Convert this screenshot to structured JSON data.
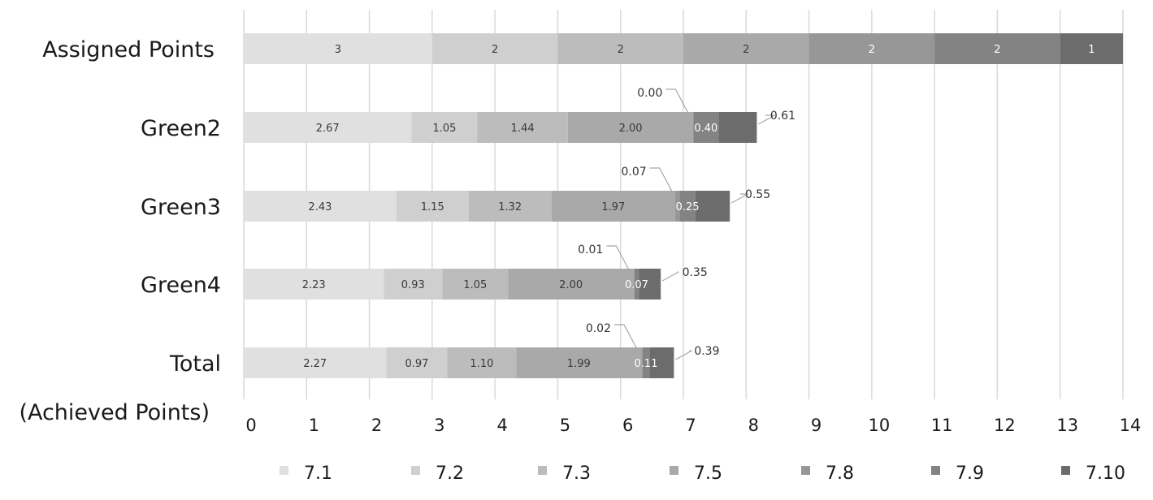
{
  "chart_data": {
    "type": "bar",
    "orientation": "horizontal",
    "stacked": true,
    "categories": [
      "Assigned Points",
      "Green2",
      "Green3",
      "Green4",
      "Total"
    ],
    "category_extra_label": "(Achieved Points)",
    "series": [
      {
        "name": "7.1",
        "values": [
          3,
          2.67,
          2.43,
          2.23,
          2.27
        ],
        "labels": [
          "3",
          "2.67",
          "2.43",
          "2.23",
          "2.27"
        ],
        "color": "#e0e0e0",
        "text_color": "#3a3a3a"
      },
      {
        "name": "7.2",
        "values": [
          2,
          1.05,
          1.15,
          0.93,
          0.97
        ],
        "labels": [
          "2",
          "1.05",
          "1.15",
          "0.93",
          "0.97"
        ],
        "color": "#cfcfcf",
        "text_color": "#3a3a3a"
      },
      {
        "name": "7.3",
        "values": [
          2,
          1.44,
          1.32,
          1.05,
          1.1
        ],
        "labels": [
          "2",
          "1.44",
          "1.32",
          "1.05",
          "1.10"
        ],
        "color": "#bcbcbc",
        "text_color": "#3a3a3a"
      },
      {
        "name": "7.5",
        "values": [
          2,
          2.0,
          1.97,
          2.0,
          1.99
        ],
        "labels": [
          "2",
          "2.00",
          "1.97",
          "2.00",
          "1.99"
        ],
        "color": "#a9a9a9",
        "text_color": "#3a3a3a"
      },
      {
        "name": "7.8",
        "values": [
          2,
          0.0,
          0.07,
          0.01,
          0.02
        ],
        "labels": [
          "2",
          "0.00",
          "0.07",
          "0.01",
          "0.02"
        ],
        "color": "#979797",
        "text_color": "#ffffff",
        "callout_rows": [
          1,
          2,
          3,
          4
        ]
      },
      {
        "name": "7.9",
        "values": [
          2,
          0.4,
          0.25,
          0.07,
          0.11
        ],
        "labels": [
          "2",
          "0.40",
          "0.25",
          "0.07",
          "0.11"
        ],
        "color": "#838383",
        "text_color": "#ffffff"
      },
      {
        "name": "7.10",
        "values": [
          1,
          0.61,
          0.55,
          0.35,
          0.39
        ],
        "labels": [
          "1",
          "0.61",
          "0.55",
          "0.35",
          "0.39"
        ],
        "color": "#6c6c6c",
        "text_color": "#ffffff",
        "callout_rows": [
          1,
          2,
          3,
          4
        ]
      }
    ],
    "xlim": [
      0,
      14
    ],
    "x_ticks": [
      "0",
      "1",
      "2",
      "3",
      "4",
      "5",
      "6",
      "7",
      "8",
      "9",
      "10",
      "11",
      "12",
      "13",
      "14"
    ],
    "grid": true,
    "legend_position": "bottom",
    "title": "",
    "xlabel": "",
    "ylabel": ""
  }
}
